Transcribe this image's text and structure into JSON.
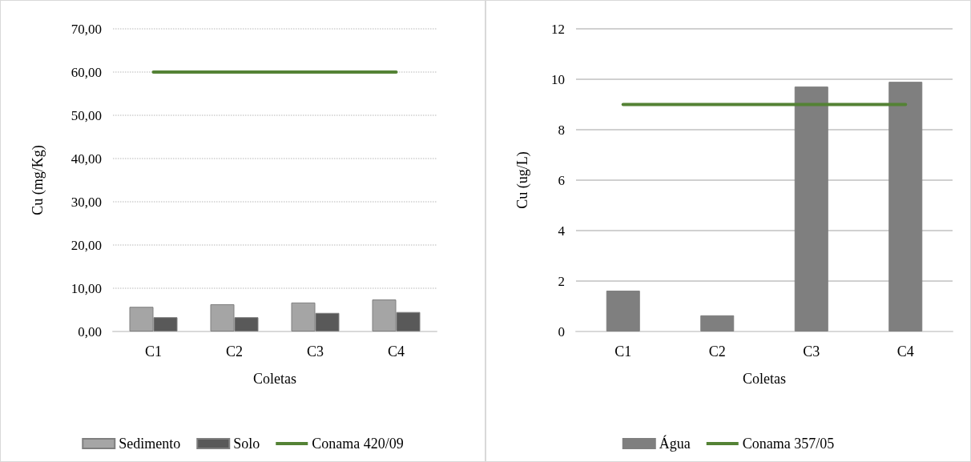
{
  "chart_data": [
    {
      "type": "bar",
      "xlabel": "Coletas",
      "ylabel": "Cu (mg/Kg)",
      "categories": [
        "C1",
        "C2",
        "C3",
        "C4"
      ],
      "series": [
        {
          "name": "Sedimento",
          "color": "#a5a5a5",
          "values": [
            5.7,
            6.3,
            6.7,
            7.4
          ]
        },
        {
          "name": "Solo",
          "color": "#595959",
          "values": [
            3.3,
            3.3,
            4.3,
            4.5
          ]
        },
        {
          "name": "Conama 420/09",
          "type": "line",
          "color": "#548235",
          "values": [
            60,
            60,
            60,
            60
          ]
        }
      ],
      "ylim": [
        0,
        70
      ],
      "yticks": [
        {
          "value": 0,
          "label": "0,00"
        },
        {
          "value": 10,
          "label": "10,00"
        },
        {
          "value": 20,
          "label": "20,00"
        },
        {
          "value": 30,
          "label": "30,00"
        },
        {
          "value": 40,
          "label": "40,00"
        },
        {
          "value": 50,
          "label": "50,00"
        },
        {
          "value": 60,
          "label": "60,00"
        },
        {
          "value": 70,
          "label": "70,00"
        }
      ],
      "grid": "y",
      "legend": "bottom",
      "marker": "none"
    },
    {
      "type": "bar",
      "xlabel": "Coletas",
      "ylabel": "Cu (ug/L)",
      "categories": [
        "C1",
        "C2",
        "C3",
        "C4"
      ],
      "series": [
        {
          "name": "Água",
          "color": "#7f7f7f",
          "values": [
            1.62,
            0.64,
            9.71,
            9.9
          ]
        },
        {
          "name": "Conama 357/05",
          "type": "line",
          "color": "#548235",
          "values": [
            9,
            9,
            9,
            9
          ]
        }
      ],
      "ylim": [
        0,
        12
      ],
      "yticks": [
        0,
        2,
        4,
        6,
        8,
        10,
        12
      ],
      "grid": "y",
      "legend": "bottom",
      "marker": "none"
    }
  ]
}
